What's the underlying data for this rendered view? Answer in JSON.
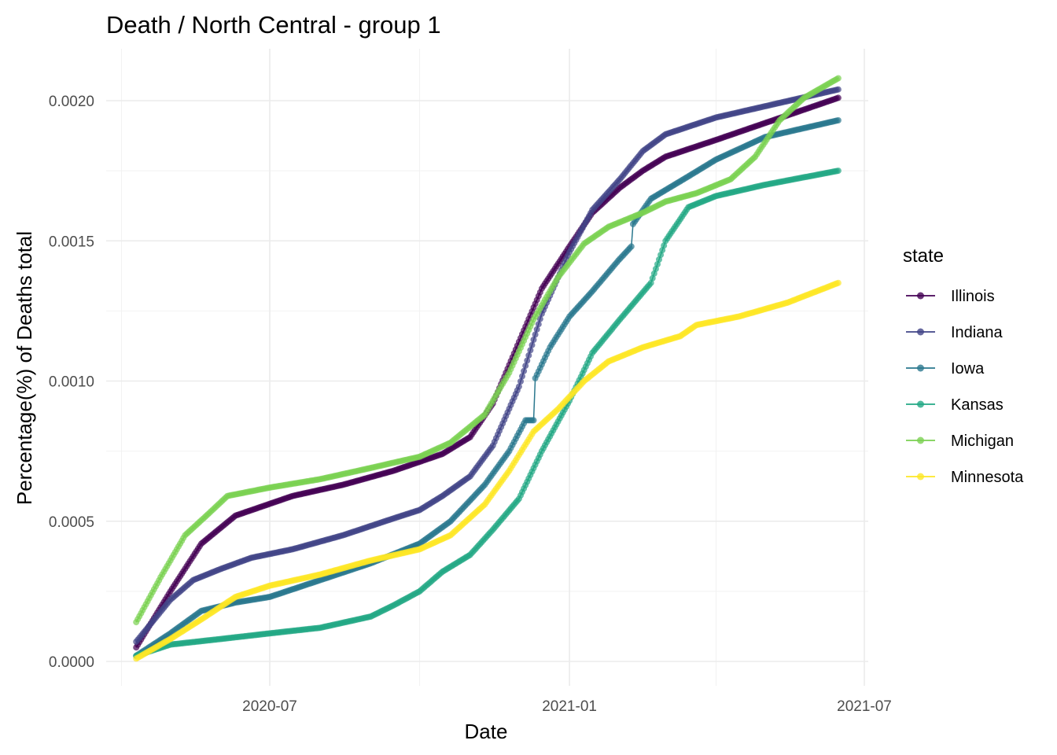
{
  "chart_data": {
    "type": "line",
    "title": "Death / North Central - group 1",
    "xlabel": "Date",
    "ylabel": "Percentage(%) of Deaths total",
    "x_range": [
      "2020-04-10",
      "2021-06-15"
    ],
    "ylim": [
      0,
      0.002
    ],
    "x_ticks": [
      "2020-07",
      "2021-01",
      "2021-07"
    ],
    "y_ticks": [
      "0.0000",
      "0.0005",
      "0.0010",
      "0.0015",
      "0.0020"
    ],
    "grid": true,
    "legend": {
      "title": "state",
      "position": "right"
    },
    "series": [
      {
        "name": "Illinois",
        "color": "#440154",
        "points": [
          [
            "2020-04-10",
            5e-05
          ],
          [
            "2020-05-01",
            0.00025
          ],
          [
            "2020-05-20",
            0.00042
          ],
          [
            "2020-06-10",
            0.00052
          ],
          [
            "2020-06-25",
            0.00055
          ],
          [
            "2020-07-15",
            0.00059
          ],
          [
            "2020-08-15",
            0.00063
          ],
          [
            "2020-09-15",
            0.00068
          ],
          [
            "2020-10-15",
            0.00074
          ],
          [
            "2020-11-01",
            0.0008
          ],
          [
            "2020-11-15",
            0.00092
          ],
          [
            "2020-12-01",
            0.00114
          ],
          [
            "2020-12-15",
            0.00133
          ],
          [
            "2021-01-01",
            0.00148
          ],
          [
            "2021-01-15",
            0.0016
          ],
          [
            "2021-02-01",
            0.00169
          ],
          [
            "2021-02-15",
            0.00175
          ],
          [
            "2021-03-01",
            0.0018
          ],
          [
            "2021-04-01",
            0.00186
          ],
          [
            "2021-05-01",
            0.00192
          ],
          [
            "2021-06-15",
            0.00201
          ]
        ]
      },
      {
        "name": "Indiana",
        "color": "#414487",
        "points": [
          [
            "2020-04-10",
            7e-05
          ],
          [
            "2020-05-01",
            0.00022
          ],
          [
            "2020-05-15",
            0.00029
          ],
          [
            "2020-06-01",
            0.00033
          ],
          [
            "2020-06-20",
            0.00037
          ],
          [
            "2020-07-15",
            0.0004
          ],
          [
            "2020-08-15",
            0.00045
          ],
          [
            "2020-09-15",
            0.00051
          ],
          [
            "2020-10-01",
            0.00054
          ],
          [
            "2020-10-15",
            0.00059
          ],
          [
            "2020-11-01",
            0.00066
          ],
          [
            "2020-11-15",
            0.00077
          ],
          [
            "2020-12-01",
            0.00098
          ],
          [
            "2020-12-15",
            0.00124
          ],
          [
            "2021-01-01",
            0.00146
          ],
          [
            "2021-01-15",
            0.00161
          ],
          [
            "2021-02-01",
            0.00172
          ],
          [
            "2021-02-15",
            0.00182
          ],
          [
            "2021-03-01",
            0.00188
          ],
          [
            "2021-04-01",
            0.00194
          ],
          [
            "2021-05-01",
            0.00198
          ],
          [
            "2021-06-15",
            0.00204
          ]
        ]
      },
      {
        "name": "Iowa",
        "color": "#2a788e",
        "points": [
          [
            "2020-04-10",
            2e-05
          ],
          [
            "2020-05-01",
            0.0001
          ],
          [
            "2020-05-20",
            0.00018
          ],
          [
            "2020-06-10",
            0.00021
          ],
          [
            "2020-07-01",
            0.00023
          ],
          [
            "2020-08-01",
            0.00029
          ],
          [
            "2020-09-01",
            0.00035
          ],
          [
            "2020-10-01",
            0.00042
          ],
          [
            "2020-10-20",
            0.0005
          ],
          [
            "2020-11-10",
            0.00063
          ],
          [
            "2020-11-25",
            0.00075
          ],
          [
            "2020-12-05",
            0.00086
          ],
          [
            "2020-12-10",
            0.00086
          ],
          [
            "2020-12-11",
            0.00101
          ],
          [
            "2020-12-20",
            0.00112
          ],
          [
            "2021-01-01",
            0.00123
          ],
          [
            "2021-01-15",
            0.00132
          ],
          [
            "2021-01-31",
            0.00143
          ],
          [
            "2021-02-08",
            0.00148
          ],
          [
            "2021-02-09",
            0.00156
          ],
          [
            "2021-02-20",
            0.00165
          ],
          [
            "2021-03-15",
            0.00173
          ],
          [
            "2021-04-01",
            0.00179
          ],
          [
            "2021-05-01",
            0.00187
          ],
          [
            "2021-06-15",
            0.00193
          ]
        ]
      },
      {
        "name": "Kansas",
        "color": "#22a884",
        "points": [
          [
            "2020-04-10",
            2e-05
          ],
          [
            "2020-05-01",
            6e-05
          ],
          [
            "2020-06-01",
            8e-05
          ],
          [
            "2020-07-01",
            0.0001
          ],
          [
            "2020-08-01",
            0.00012
          ],
          [
            "2020-09-01",
            0.00016
          ],
          [
            "2020-09-15",
            0.0002
          ],
          [
            "2020-10-01",
            0.00025
          ],
          [
            "2020-10-15",
            0.00032
          ],
          [
            "2020-11-01",
            0.00038
          ],
          [
            "2020-11-15",
            0.00047
          ],
          [
            "2020-12-01",
            0.00058
          ],
          [
            "2020-12-15",
            0.00075
          ],
          [
            "2021-01-01",
            0.00093
          ],
          [
            "2021-01-15",
            0.0011
          ],
          [
            "2021-02-01",
            0.00122
          ],
          [
            "2021-02-20",
            0.00135
          ],
          [
            "2021-03-01",
            0.0015
          ],
          [
            "2021-03-15",
            0.00162
          ],
          [
            "2021-04-01",
            0.00166
          ],
          [
            "2021-05-01",
            0.0017
          ],
          [
            "2021-06-15",
            0.00175
          ]
        ]
      },
      {
        "name": "Michigan",
        "color": "#7ad151",
        "points": [
          [
            "2020-04-10",
            0.00014
          ],
          [
            "2020-04-25",
            0.0003
          ],
          [
            "2020-05-10",
            0.00045
          ],
          [
            "2020-05-25",
            0.00053
          ],
          [
            "2020-06-05",
            0.00059
          ],
          [
            "2020-07-01",
            0.00062
          ],
          [
            "2020-08-01",
            0.00065
          ],
          [
            "2020-09-01",
            0.00069
          ],
          [
            "2020-10-01",
            0.00073
          ],
          [
            "2020-10-20",
            0.00078
          ],
          [
            "2020-11-10",
            0.00088
          ],
          [
            "2020-11-25",
            0.00103
          ],
          [
            "2020-12-10",
            0.00122
          ],
          [
            "2020-12-25",
            0.00137
          ],
          [
            "2021-01-10",
            0.00149
          ],
          [
            "2021-01-25",
            0.00155
          ],
          [
            "2021-02-15",
            0.0016
          ],
          [
            "2021-03-01",
            0.00164
          ],
          [
            "2021-03-20",
            0.00167
          ],
          [
            "2021-04-10",
            0.00172
          ],
          [
            "2021-04-25",
            0.0018
          ],
          [
            "2021-05-10",
            0.00193
          ],
          [
            "2021-05-25",
            0.00201
          ],
          [
            "2021-06-15",
            0.00208
          ]
        ]
      },
      {
        "name": "Minnesota",
        "color": "#fde725",
        "points": [
          [
            "2020-04-10",
            1e-05
          ],
          [
            "2020-05-01",
            8e-05
          ],
          [
            "2020-05-20",
            0.00015
          ],
          [
            "2020-06-10",
            0.00023
          ],
          [
            "2020-07-01",
            0.00027
          ],
          [
            "2020-08-01",
            0.00031
          ],
          [
            "2020-09-01",
            0.00036
          ],
          [
            "2020-10-01",
            0.0004
          ],
          [
            "2020-10-20",
            0.00045
          ],
          [
            "2020-11-10",
            0.00056
          ],
          [
            "2020-11-25",
            0.00068
          ],
          [
            "2020-12-10",
            0.00082
          ],
          [
            "2020-12-25",
            0.0009
          ],
          [
            "2021-01-10",
            0.001
          ],
          [
            "2021-01-25",
            0.00107
          ],
          [
            "2021-02-15",
            0.00112
          ],
          [
            "2021-03-10",
            0.00116
          ],
          [
            "2021-03-20",
            0.0012
          ],
          [
            "2021-04-15",
            0.00123
          ],
          [
            "2021-05-15",
            0.00128
          ],
          [
            "2021-06-15",
            0.00135
          ]
        ]
      }
    ]
  }
}
